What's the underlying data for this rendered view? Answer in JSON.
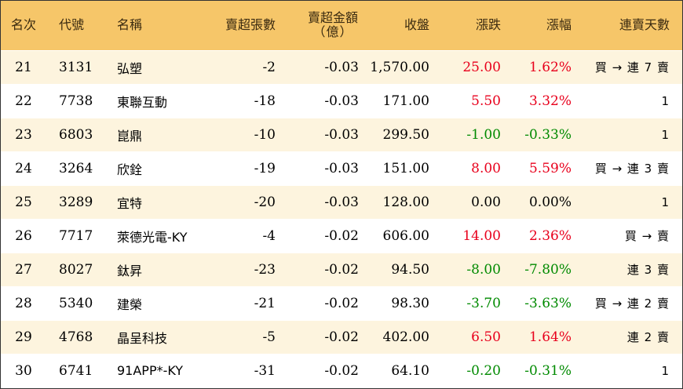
{
  "header": {
    "rank": "名次",
    "code": "代號",
    "name": "名稱",
    "net_sell_lots": "賣超張數",
    "net_sell_amount": "賣超金額",
    "net_sell_amount_unit": "（億）",
    "close": "收盤",
    "change": "漲跌",
    "change_pct": "漲幅",
    "streak": "連賣天數"
  },
  "colors": {
    "up": "#e8001c",
    "down": "#008a00",
    "header_bg": "#f6c669",
    "odd_row_bg": "#fdf4de"
  },
  "rows": [
    {
      "rank": "21",
      "code": "3131",
      "name": "弘塑",
      "lots": "-2",
      "amount": "-0.03",
      "close": "1,570.00",
      "change": "25.00",
      "pct": "1.62%",
      "dir": "up",
      "streak": "買 → 連 7 賣"
    },
    {
      "rank": "22",
      "code": "7738",
      "name": "東聯互動",
      "lots": "-18",
      "amount": "-0.03",
      "close": "171.00",
      "change": "5.50",
      "pct": "3.32%",
      "dir": "up",
      "streak": "1"
    },
    {
      "rank": "23",
      "code": "6803",
      "name": "崑鼎",
      "lots": "-10",
      "amount": "-0.03",
      "close": "299.50",
      "change": "-1.00",
      "pct": "-0.33%",
      "dir": "down",
      "streak": "1"
    },
    {
      "rank": "24",
      "code": "3264",
      "name": "欣銓",
      "lots": "-19",
      "amount": "-0.03",
      "close": "151.00",
      "change": "8.00",
      "pct": "5.59%",
      "dir": "up",
      "streak": "買 → 連 3 賣"
    },
    {
      "rank": "25",
      "code": "3289",
      "name": "宜特",
      "lots": "-20",
      "amount": "-0.03",
      "close": "128.00",
      "change": "0.00",
      "pct": "0.00%",
      "dir": "flat",
      "streak": "1"
    },
    {
      "rank": "26",
      "code": "7717",
      "name": "萊德光電-KY",
      "lots": "-4",
      "amount": "-0.02",
      "close": "606.00",
      "change": "14.00",
      "pct": "2.36%",
      "dir": "up",
      "streak": "買 → 賣"
    },
    {
      "rank": "27",
      "code": "8027",
      "name": "鈦昇",
      "lots": "-23",
      "amount": "-0.02",
      "close": "94.50",
      "change": "-8.00",
      "pct": "-7.80%",
      "dir": "down",
      "streak": "連 3 賣"
    },
    {
      "rank": "28",
      "code": "5340",
      "name": "建榮",
      "lots": "-21",
      "amount": "-0.02",
      "close": "98.30",
      "change": "-3.70",
      "pct": "-3.63%",
      "dir": "down",
      "streak": "買 → 連 2 賣"
    },
    {
      "rank": "29",
      "code": "4768",
      "name": "晶呈科技",
      "lots": "-5",
      "amount": "-0.02",
      "close": "402.00",
      "change": "6.50",
      "pct": "1.64%",
      "dir": "up",
      "streak": "連 2 賣"
    },
    {
      "rank": "30",
      "code": "6741",
      "name": "91APP*-KY",
      "lots": "-31",
      "amount": "-0.02",
      "close": "64.10",
      "change": "-0.20",
      "pct": "-0.31%",
      "dir": "down",
      "streak": "1"
    }
  ]
}
